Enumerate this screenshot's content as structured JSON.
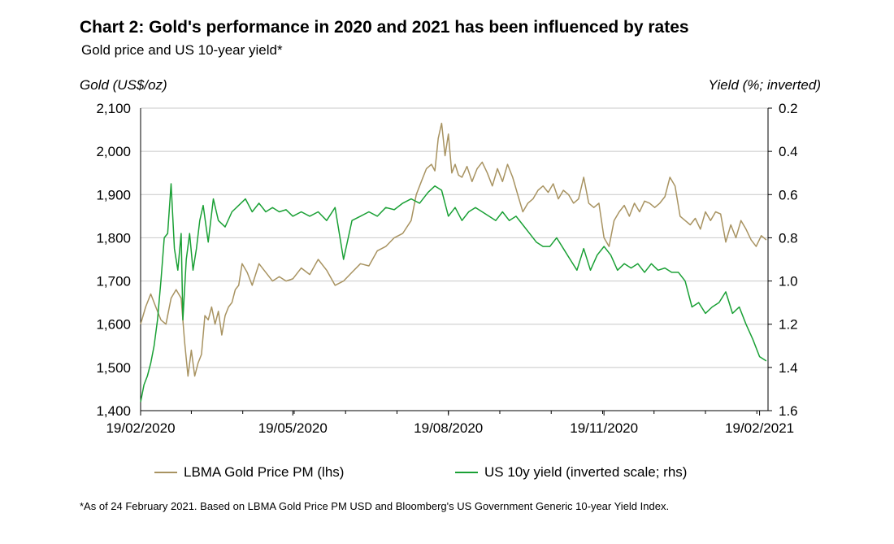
{
  "chart_data": {
    "type": "line",
    "title": "Chart 2: Gold's performance in 2020 and 2021 has been influenced by rates",
    "subtitle": "Gold price and US 10-year yield*",
    "y_left_label": "Gold (US$/oz)",
    "y_right_label": "Yield (%; inverted)",
    "y_left_ticks": [
      "2,100",
      "2,000",
      "1,900",
      "1,800",
      "1,700",
      "1,600",
      "1,500",
      "1,400"
    ],
    "y_right_ticks": [
      "0.2",
      "0.4",
      "0.6",
      "0.8",
      "1.0",
      "1.2",
      "1.4",
      "1.6"
    ],
    "x_ticks": [
      "19/02/2020",
      "19/05/2020",
      "19/08/2020",
      "19/11/2020",
      "19/02/2021"
    ],
    "ylim_left": [
      1400,
      2100
    ],
    "ylim_right_inverted": [
      0.2,
      1.6
    ],
    "xlim_days": [
      0,
      371
    ],
    "grid": "horizontal",
    "series": [
      {
        "name": "LBMA Gold Price PM (lhs)",
        "axis": "left",
        "color": "#a89361",
        "x": [
          0,
          3,
          6,
          9,
          12,
          15,
          18,
          21,
          24,
          26,
          28,
          30,
          32,
          34,
          36,
          38,
          40,
          42,
          44,
          46,
          48,
          50,
          52,
          54,
          56,
          58,
          60,
          63,
          66,
          70,
          74,
          78,
          82,
          86,
          90,
          95,
          100,
          105,
          110,
          115,
          120,
          125,
          130,
          135,
          140,
          145,
          150,
          155,
          160,
          163,
          166,
          169,
          172,
          174,
          176,
          178,
          180,
          182,
          184,
          186,
          188,
          190,
          193,
          196,
          199,
          202,
          205,
          208,
          211,
          214,
          217,
          220,
          223,
          226,
          229,
          232,
          235,
          238,
          241,
          244,
          247,
          250,
          253,
          256,
          259,
          262,
          265,
          268,
          271,
          274,
          277,
          280,
          283,
          286,
          289,
          292,
          295,
          298,
          301,
          304,
          307,
          310,
          313,
          316,
          319,
          322,
          325,
          328,
          331,
          334,
          337,
          340,
          343,
          346,
          349,
          352,
          355,
          358,
          361,
          364,
          367,
          370
        ],
        "values": [
          1600,
          1640,
          1670,
          1640,
          1610,
          1600,
          1660,
          1680,
          1660,
          1560,
          1480,
          1540,
          1480,
          1510,
          1530,
          1620,
          1610,
          1640,
          1600,
          1630,
          1575,
          1620,
          1640,
          1650,
          1680,
          1690,
          1740,
          1720,
          1690,
          1740,
          1720,
          1700,
          1710,
          1700,
          1705,
          1730,
          1715,
          1750,
          1725,
          1690,
          1700,
          1720,
          1740,
          1735,
          1770,
          1780,
          1800,
          1810,
          1840,
          1900,
          1930,
          1960,
          1970,
          1955,
          2030,
          2065,
          1990,
          2040,
          1950,
          1970,
          1945,
          1940,
          1965,
          1930,
          1960,
          1975,
          1950,
          1920,
          1960,
          1930,
          1970,
          1940,
          1900,
          1860,
          1880,
          1890,
          1910,
          1920,
          1905,
          1925,
          1890,
          1910,
          1900,
          1880,
          1890,
          1940,
          1880,
          1870,
          1880,
          1800,
          1780,
          1840,
          1860,
          1875,
          1850,
          1880,
          1860,
          1885,
          1880,
          1870,
          1880,
          1895,
          1940,
          1920,
          1850,
          1840,
          1830,
          1845,
          1820,
          1860,
          1840,
          1860,
          1855,
          1790,
          1830,
          1800,
          1840,
          1820,
          1795,
          1780,
          1805,
          1795
        ]
      },
      {
        "name": "US 10y yield (inverted scale; rhs)",
        "axis": "right",
        "color": "#1aa035",
        "x": [
          0,
          2,
          4,
          6,
          8,
          10,
          12,
          14,
          16,
          18,
          20,
          22,
          24,
          25,
          27,
          29,
          31,
          33,
          35,
          37,
          40,
          43,
          46,
          50,
          54,
          58,
          62,
          66,
          70,
          74,
          78,
          82,
          86,
          90,
          95,
          100,
          105,
          110,
          115,
          120,
          125,
          130,
          135,
          140,
          145,
          150,
          155,
          160,
          165,
          170,
          174,
          178,
          182,
          186,
          190,
          194,
          198,
          202,
          206,
          210,
          214,
          218,
          222,
          226,
          230,
          234,
          238,
          242,
          246,
          250,
          254,
          258,
          262,
          266,
          270,
          274,
          278,
          282,
          286,
          290,
          294,
          298,
          302,
          306,
          310,
          314,
          318,
          322,
          326,
          330,
          334,
          338,
          342,
          346,
          350,
          354,
          358,
          362,
          366,
          370
        ],
        "values": [
          1.56,
          1.48,
          1.44,
          1.38,
          1.3,
          1.18,
          1.0,
          0.8,
          0.78,
          0.55,
          0.85,
          0.95,
          0.78,
          1.18,
          0.9,
          0.78,
          0.95,
          0.85,
          0.72,
          0.65,
          0.82,
          0.62,
          0.72,
          0.75,
          0.68,
          0.65,
          0.62,
          0.68,
          0.64,
          0.68,
          0.66,
          0.68,
          0.67,
          0.7,
          0.68,
          0.7,
          0.68,
          0.72,
          0.66,
          0.9,
          0.72,
          0.7,
          0.68,
          0.7,
          0.66,
          0.67,
          0.64,
          0.62,
          0.64,
          0.59,
          0.56,
          0.58,
          0.7,
          0.66,
          0.72,
          0.68,
          0.66,
          0.68,
          0.7,
          0.72,
          0.68,
          0.72,
          0.7,
          0.74,
          0.78,
          0.82,
          0.84,
          0.84,
          0.8,
          0.85,
          0.9,
          0.95,
          0.85,
          0.95,
          0.88,
          0.84,
          0.88,
          0.95,
          0.92,
          0.94,
          0.92,
          0.96,
          0.92,
          0.95,
          0.94,
          0.96,
          0.96,
          1.0,
          1.12,
          1.1,
          1.15,
          1.12,
          1.1,
          1.05,
          1.15,
          1.12,
          1.2,
          1.27,
          1.35,
          1.37
        ]
      }
    ]
  },
  "legend": {
    "gold_label": "LBMA Gold Price PM (lhs)",
    "yield_label": "US 10y yield (inverted scale; rhs)"
  },
  "footnote": "*As of 24 February 2021. Based on LBMA Gold Price PM USD and Bloomberg's US Government Generic 10-year Yield Index."
}
